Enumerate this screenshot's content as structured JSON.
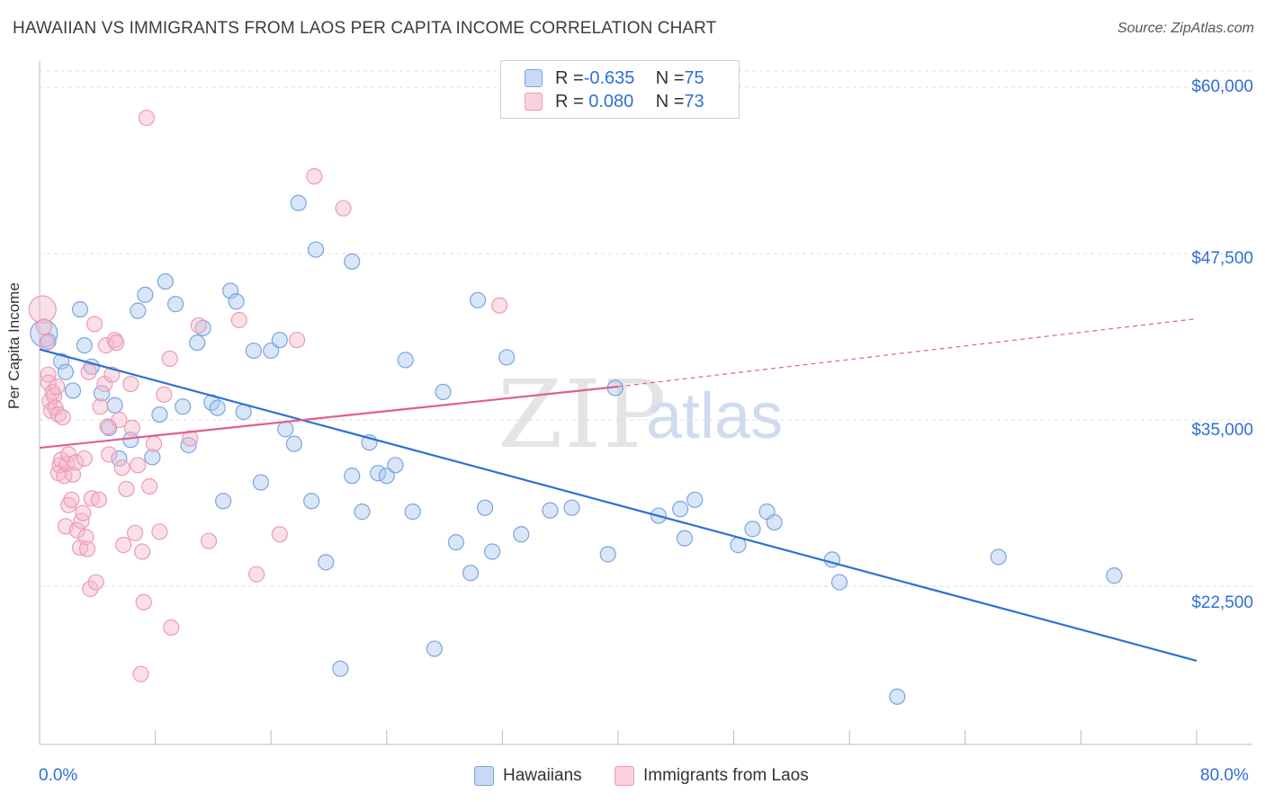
{
  "header": {
    "title": "HAWAIIAN VS IMMIGRANTS FROM LAOS PER CAPITA INCOME CORRELATION CHART",
    "source": "Source: ZipAtlas.com"
  },
  "watermark": {
    "zip": "ZIP",
    "atlas": "atlas"
  },
  "legend": {
    "rows": [
      {
        "r_label": "R = ",
        "r_value": "-0.635",
        "n_label": "N = ",
        "n_value": "75"
      },
      {
        "r_label": "R = ",
        "r_value": " 0.080",
        "n_label": "N = ",
        "n_value": "73"
      }
    ]
  },
  "bottom_legend": {
    "series_a": "Hawaiians",
    "series_b": "Immigrants from Laos"
  },
  "axis": {
    "x_min_label": "0.0%",
    "x_max_label": "80.0%",
    "y_title": "Per Capita Income",
    "y_ticks": [
      "$60,000",
      "$47,500",
      "$35,000",
      "$22,500"
    ]
  },
  "colors": {
    "blue": "#2f6fd6",
    "blue_fill": "#aac8ee",
    "pink": "#e0608a",
    "pink_fill": "#f5b8cb",
    "grid": "#dddddd"
  },
  "chart_data": {
    "type": "scatter",
    "title": "HAWAIIAN VS IMMIGRANTS FROM LAOS PER CAPITA INCOME CORRELATION CHART",
    "xlabel": "",
    "ylabel": "Per Capita Income",
    "xlim": [
      0,
      80
    ],
    "ylim": [
      10000,
      62000
    ],
    "y_ticks": [
      22500,
      35000,
      47500,
      60000
    ],
    "series": [
      {
        "name": "Hawaiians",
        "r": -0.635,
        "n": 75,
        "trend": {
          "x0": 0,
          "y0": 40300,
          "x1": 80,
          "y1": 16900
        },
        "points": [
          [
            0.3,
            41500
          ],
          [
            0.6,
            40900
          ],
          [
            1.5,
            39400
          ],
          [
            1.8,
            38600
          ],
          [
            2.3,
            37200
          ],
          [
            2.8,
            43300
          ],
          [
            3.1,
            40600
          ],
          [
            3.6,
            39000
          ],
          [
            4.3,
            37000
          ],
          [
            4.8,
            34400
          ],
          [
            5.2,
            36100
          ],
          [
            5.5,
            32100
          ],
          [
            6.3,
            33500
          ],
          [
            6.8,
            43200
          ],
          [
            7.3,
            44400
          ],
          [
            7.8,
            32200
          ],
          [
            8.3,
            35400
          ],
          [
            8.7,
            45400
          ],
          [
            9.4,
            43700
          ],
          [
            9.9,
            36000
          ],
          [
            10.3,
            33100
          ],
          [
            10.9,
            40800
          ],
          [
            11.3,
            41900
          ],
          [
            11.9,
            36300
          ],
          [
            12.3,
            35900
          ],
          [
            12.7,
            28900
          ],
          [
            13.2,
            44700
          ],
          [
            13.6,
            43900
          ],
          [
            14.1,
            35600
          ],
          [
            14.8,
            40200
          ],
          [
            15.3,
            30300
          ],
          [
            16.0,
            40200
          ],
          [
            16.6,
            41000
          ],
          [
            17.0,
            34300
          ],
          [
            17.6,
            33200
          ],
          [
            17.9,
            51300
          ],
          [
            18.8,
            28900
          ],
          [
            19.1,
            47800
          ],
          [
            19.8,
            24300
          ],
          [
            20.8,
            16300
          ],
          [
            21.6,
            46900
          ],
          [
            21.6,
            30800
          ],
          [
            22.3,
            28100
          ],
          [
            22.8,
            33300
          ],
          [
            23.4,
            31000
          ],
          [
            24.0,
            30800
          ],
          [
            24.6,
            31600
          ],
          [
            25.3,
            39500
          ],
          [
            25.8,
            28100
          ],
          [
            27.3,
            17800
          ],
          [
            27.9,
            37100
          ],
          [
            28.8,
            25800
          ],
          [
            29.8,
            23500
          ],
          [
            30.3,
            44000
          ],
          [
            30.8,
            28400
          ],
          [
            31.3,
            25100
          ],
          [
            32.3,
            39700
          ],
          [
            33.3,
            26400
          ],
          [
            35.3,
            28200
          ],
          [
            36.8,
            28400
          ],
          [
            39.3,
            24900
          ],
          [
            39.8,
            37400
          ],
          [
            42.8,
            27800
          ],
          [
            44.3,
            28300
          ],
          [
            44.6,
            26100
          ],
          [
            45.3,
            29000
          ],
          [
            48.3,
            25600
          ],
          [
            49.3,
            26800
          ],
          [
            50.3,
            28100
          ],
          [
            50.8,
            27300
          ],
          [
            55.3,
            22800
          ],
          [
            54.8,
            24500
          ],
          [
            59.3,
            14200
          ],
          [
            66.3,
            24700
          ],
          [
            74.3,
            23300
          ]
        ]
      },
      {
        "name": "Immigrants from Laos",
        "r": 0.08,
        "n": 73,
        "trend": {
          "x0": 0,
          "y0": 32900,
          "x1": 40,
          "y1": 37500
        },
        "trend_dashed": {
          "x0": 40,
          "y0": 37500,
          "x1": 80,
          "y1": 42600
        },
        "points": [
          [
            0.2,
            43300
          ],
          [
            0.3,
            42000
          ],
          [
            0.5,
            40800
          ],
          [
            0.6,
            38400
          ],
          [
            0.6,
            37800
          ],
          [
            0.7,
            36400
          ],
          [
            0.8,
            35700
          ],
          [
            0.9,
            37100
          ],
          [
            1.0,
            36800
          ],
          [
            1.1,
            35900
          ],
          [
            1.2,
            37500
          ],
          [
            1.3,
            35400
          ],
          [
            1.3,
            31000
          ],
          [
            1.4,
            31600
          ],
          [
            1.5,
            32000
          ],
          [
            1.6,
            35200
          ],
          [
            1.7,
            30800
          ],
          [
            1.8,
            27000
          ],
          [
            1.9,
            31700
          ],
          [
            2.0,
            32400
          ],
          [
            2.0,
            28600
          ],
          [
            2.2,
            29000
          ],
          [
            2.3,
            30900
          ],
          [
            2.5,
            31800
          ],
          [
            2.6,
            26700
          ],
          [
            2.8,
            25400
          ],
          [
            2.9,
            27400
          ],
          [
            3.0,
            28000
          ],
          [
            3.1,
            32100
          ],
          [
            3.2,
            26200
          ],
          [
            3.3,
            25300
          ],
          [
            3.4,
            38600
          ],
          [
            3.5,
            22300
          ],
          [
            3.6,
            29100
          ],
          [
            3.8,
            42200
          ],
          [
            3.9,
            22800
          ],
          [
            4.1,
            29000
          ],
          [
            4.2,
            36000
          ],
          [
            4.5,
            37700
          ],
          [
            4.6,
            40600
          ],
          [
            4.7,
            34500
          ],
          [
            4.8,
            32400
          ],
          [
            5.0,
            38400
          ],
          [
            5.2,
            41000
          ],
          [
            5.3,
            40800
          ],
          [
            5.5,
            35000
          ],
          [
            5.7,
            31400
          ],
          [
            5.8,
            25600
          ],
          [
            6.0,
            29800
          ],
          [
            6.3,
            37700
          ],
          [
            6.4,
            34400
          ],
          [
            6.6,
            26500
          ],
          [
            6.8,
            31600
          ],
          [
            7.0,
            15900
          ],
          [
            7.1,
            25100
          ],
          [
            7.2,
            21300
          ],
          [
            7.4,
            57700
          ],
          [
            7.6,
            30000
          ],
          [
            7.9,
            33200
          ],
          [
            8.3,
            26600
          ],
          [
            8.6,
            36900
          ],
          [
            9.0,
            39600
          ],
          [
            9.1,
            19400
          ],
          [
            10.4,
            33600
          ],
          [
            11.0,
            42100
          ],
          [
            11.7,
            25900
          ],
          [
            13.8,
            42500
          ],
          [
            15.0,
            23400
          ],
          [
            16.6,
            26400
          ],
          [
            17.8,
            41000
          ],
          [
            19.0,
            53300
          ],
          [
            21.0,
            50900
          ],
          [
            31.8,
            43600
          ]
        ]
      }
    ]
  }
}
